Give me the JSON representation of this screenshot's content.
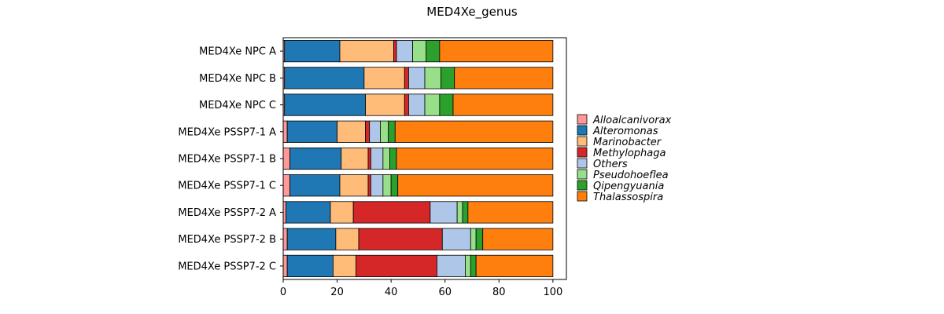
{
  "chart_data": {
    "type": "bar",
    "orientation": "horizontal",
    "stacked": true,
    "title": "MED4Xe_genus",
    "xlabel": "",
    "ylabel": "",
    "xlim": [
      0,
      105
    ],
    "xticks": [
      0,
      20,
      40,
      60,
      80,
      100
    ],
    "grid": false,
    "legend_position": "right",
    "categories": [
      "MED4Xe NPC A",
      "MED4Xe NPC B",
      "MED4Xe NPC C",
      "MED4Xe PSSP7-1 A",
      "MED4Xe PSSP7-1 B",
      "MED4Xe PSSP7-1 C",
      "MED4Xe PSSP7-2 A",
      "MED4Xe PSSP7-2 B",
      "MED4Xe PSSP7-2 C"
    ],
    "series": [
      {
        "name": "Alloalcanivorax",
        "color": "#ff9896",
        "values": [
          0.5,
          0.5,
          0.5,
          1.5,
          2.5,
          2.5,
          1.0,
          1.5,
          1.5
        ]
      },
      {
        "name": "Alteromonas",
        "color": "#1f77b4",
        "values": [
          20.5,
          29.5,
          30.0,
          18.5,
          19.0,
          18.5,
          16.5,
          18.0,
          17.0
        ]
      },
      {
        "name": "Marinobacter",
        "color": "#ffbb78",
        "values": [
          20.0,
          15.0,
          14.5,
          10.5,
          10.0,
          10.5,
          8.5,
          8.5,
          8.5
        ]
      },
      {
        "name": "Methylophaga",
        "color": "#d62728",
        "values": [
          1.0,
          1.5,
          1.5,
          1.5,
          1.0,
          1.0,
          28.5,
          31.0,
          30.0
        ]
      },
      {
        "name": "Others",
        "color": "#aec7e8",
        "values": [
          6.0,
          6.0,
          6.0,
          4.0,
          4.5,
          4.5,
          10.0,
          10.5,
          10.5
        ]
      },
      {
        "name": "Pseudohoeflea",
        "color": "#98df8a",
        "values": [
          5.0,
          6.0,
          5.5,
          3.0,
          2.5,
          3.0,
          2.0,
          2.0,
          2.0
        ]
      },
      {
        "name": "Qipengyuania",
        "color": "#2ca02c",
        "values": [
          5.0,
          5.0,
          5.0,
          2.5,
          2.5,
          2.5,
          2.0,
          2.5,
          2.0
        ]
      },
      {
        "name": "Thalassospira",
        "color": "#ff7f0e",
        "values": [
          42.0,
          36.5,
          37.0,
          58.5,
          58.0,
          57.5,
          31.5,
          26.0,
          28.5
        ]
      }
    ]
  }
}
